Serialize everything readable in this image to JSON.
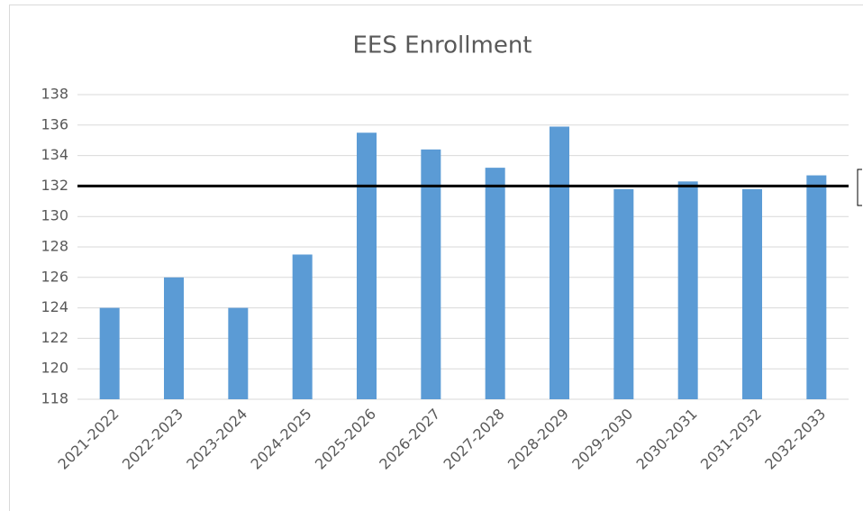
{
  "chart_data": {
    "type": "bar",
    "title": "EES Enrollment",
    "categories": [
      "2021-2022",
      "2022-2023",
      "2023-2024",
      "2024-2025",
      "2025-2026",
      "2026-2027",
      "2027-2028",
      "2028-2029",
      "2029-2030",
      "2030-2031",
      "2031-2032",
      "2032-2033"
    ],
    "values": [
      124,
      126,
      124,
      127.5,
      135.5,
      134.4,
      133.2,
      135.9,
      131.8,
      132.3,
      131.8,
      132.7
    ],
    "color": "#5b9bd5",
    "ylim": [
      118,
      138
    ],
    "yticks": [
      118,
      120,
      122,
      124,
      126,
      128,
      130,
      132,
      134,
      136,
      138
    ],
    "grid": true,
    "reference_line": {
      "value": 132,
      "color": "#000000"
    }
  }
}
